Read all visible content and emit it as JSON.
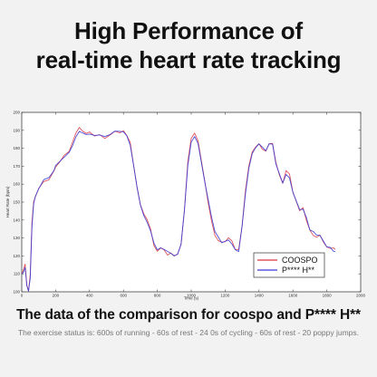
{
  "headline": {
    "line1": "High Performance of",
    "line2": "real-time heart rate tracking"
  },
  "caption": "The data of the comparison for coospo and P**** H**",
  "note": "The exercise status is: 600s of running - 60s of rest - 24 0s of cycling - 60s of rest - 20 poppy jumps.",
  "colors": {
    "series_coospo": "#d9363e",
    "series_other": "#3b3bd6"
  },
  "chart_data": {
    "type": "line",
    "xlabel": "Time (s)",
    "ylabel": "Heart Rate (bpm)",
    "xlim": [
      0,
      2000
    ],
    "ylim": [
      100,
      200
    ],
    "xticks": [
      "0",
      "200",
      "400",
      "600",
      "800",
      "1000",
      "1200",
      "1400",
      "1600",
      "1800",
      "2000"
    ],
    "yticks": [
      "100",
      "110",
      "120",
      "130",
      "140",
      "150",
      "160",
      "170",
      "180",
      "190",
      "200"
    ],
    "legend_position": "bottom-right",
    "grid": false,
    "series": [
      {
        "name": "COOSPO",
        "x": [
          0,
          10,
          20,
          30,
          40,
          50,
          60,
          70,
          80,
          100,
          130,
          160,
          190,
          200,
          220,
          250,
          280,
          300,
          320,
          340,
          360,
          380,
          400,
          430,
          460,
          490,
          520,
          550,
          580,
          600,
          620,
          640,
          660,
          680,
          700,
          720,
          740,
          760,
          780,
          800,
          820,
          840,
          860,
          880,
          900,
          920,
          940,
          960,
          980,
          1000,
          1020,
          1040,
          1060,
          1080,
          1100,
          1120,
          1140,
          1160,
          1180,
          1200,
          1220,
          1240,
          1260,
          1280,
          1300,
          1320,
          1340,
          1360,
          1380,
          1400,
          1420,
          1440,
          1460,
          1480,
          1500,
          1520,
          1540,
          1560,
          1580,
          1600,
          1620,
          1640,
          1660,
          1680,
          1700,
          1720,
          1740,
          1760,
          1780,
          1800,
          1820,
          1840,
          1850
        ],
        "values": [
          110,
          112,
          115,
          103,
          100,
          109,
          138,
          150,
          153,
          158,
          162,
          163,
          168,
          170,
          172,
          176,
          178,
          183,
          188,
          191,
          189,
          188,
          189,
          187,
          188,
          186,
          188,
          190,
          189,
          190,
          187,
          183,
          170,
          158,
          148,
          143,
          140,
          135,
          126,
          123,
          125,
          124,
          121,
          122,
          120,
          121,
          126,
          145,
          172,
          185,
          188,
          184,
          173,
          162,
          150,
          140,
          132,
          129,
          128,
          128,
          130,
          128,
          123,
          123,
          136,
          156,
          170,
          178,
          181,
          183,
          180,
          179,
          183,
          183,
          172,
          165,
          160,
          167,
          165,
          155,
          150,
          145,
          147,
          140,
          135,
          132,
          131,
          132,
          128,
          125,
          124,
          124,
          123
        ]
      },
      {
        "name": "P**** H**",
        "x": [
          0,
          10,
          20,
          30,
          40,
          50,
          60,
          70,
          80,
          100,
          130,
          160,
          190,
          200,
          220,
          250,
          280,
          300,
          320,
          340,
          360,
          380,
          400,
          430,
          460,
          490,
          520,
          550,
          580,
          600,
          620,
          640,
          660,
          680,
          700,
          720,
          740,
          760,
          780,
          800,
          820,
          840,
          860,
          880,
          900,
          920,
          940,
          960,
          980,
          1000,
          1020,
          1040,
          1060,
          1080,
          1100,
          1120,
          1140,
          1160,
          1180,
          1200,
          1220,
          1240,
          1260,
          1280,
          1300,
          1320,
          1340,
          1360,
          1380,
          1400,
          1420,
          1440,
          1460,
          1480,
          1500,
          1520,
          1540,
          1560,
          1580,
          1600,
          1620,
          1640,
          1660,
          1680,
          1700,
          1720,
          1740,
          1760,
          1780,
          1800,
          1820,
          1840,
          1850
        ],
        "values": [
          110,
          111,
          114,
          104,
          101,
          108,
          136,
          149,
          153,
          157,
          162,
          163,
          167,
          170,
          172,
          175,
          178,
          182,
          187,
          190,
          189,
          188,
          188,
          187,
          187,
          186,
          187,
          189,
          189,
          189,
          187,
          182,
          171,
          159,
          149,
          143,
          139,
          134,
          127,
          123,
          124,
          123,
          122,
          121,
          120,
          121,
          127,
          146,
          171,
          184,
          187,
          183,
          172,
          161,
          151,
          141,
          133,
          130,
          127,
          128,
          129,
          127,
          124,
          123,
          137,
          155,
          169,
          177,
          180,
          182,
          180,
          178,
          182,
          182,
          171,
          166,
          161,
          166,
          164,
          156,
          151,
          146,
          146,
          141,
          134,
          133,
          131,
          131,
          128,
          125,
          125,
          123,
          123
        ]
      }
    ]
  }
}
